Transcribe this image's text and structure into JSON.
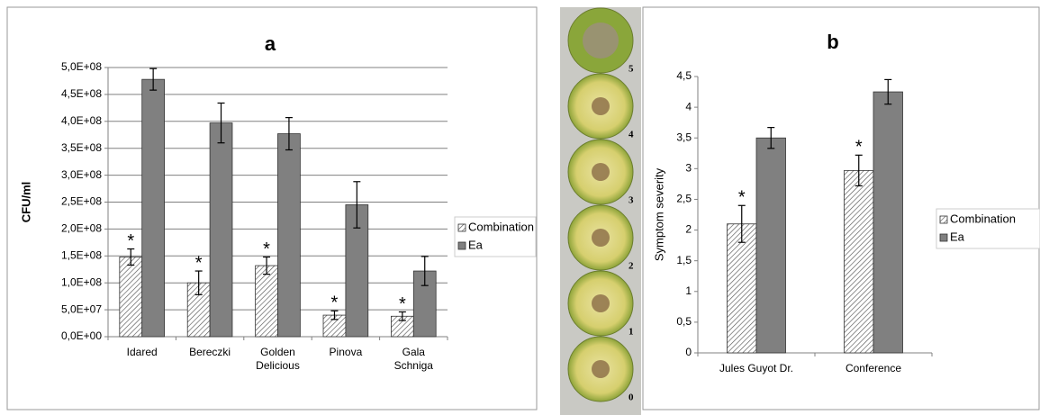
{
  "chart_data": [
    {
      "type": "bar",
      "title": "a",
      "y_label": "CFU/ml",
      "categories": [
        "Idared",
        "Bereczki",
        "Golden Delicious",
        "Pinova",
        "Gala Schniga"
      ],
      "series": [
        {
          "name": "Combination",
          "color": "#ffffff",
          "hatch": true,
          "values": [
            148000000,
            100000000,
            132000000,
            40000000,
            38000000
          ],
          "errors": [
            15000000,
            22000000,
            16000000,
            8000000,
            8000000
          ],
          "significance": [
            "*",
            "*",
            "*",
            "*",
            "*"
          ]
        },
        {
          "name": "Ea",
          "color": "#808080",
          "hatch": false,
          "values": [
            478000000,
            397000000,
            377000000,
            245000000,
            122000000
          ],
          "errors": [
            20000000,
            37000000,
            30000000,
            43000000,
            27000000
          ]
        }
      ],
      "ylim": [
        0,
        500000000
      ],
      "yticks": [
        {
          "value": 0,
          "label": "0,0E+00"
        },
        {
          "value": 50000000,
          "label": "5,0E+07"
        },
        {
          "value": 100000000,
          "label": "1,0E+08"
        },
        {
          "value": 150000000,
          "label": "1,5E+08"
        },
        {
          "value": 200000000,
          "label": "2,0E+08"
        },
        {
          "value": 250000000,
          "label": "2,5E+08"
        },
        {
          "value": 300000000,
          "label": "3,0E+08"
        },
        {
          "value": 350000000,
          "label": "3,5E+08"
        },
        {
          "value": 400000000,
          "label": "4,0E+08"
        },
        {
          "value": 450000000,
          "label": "4,5E+08"
        },
        {
          "value": 500000000,
          "label": "5,0E+08"
        }
      ],
      "grid": true,
      "legend": "right"
    },
    {
      "type": "bar",
      "title": "b",
      "y_label": "Symptom severity",
      "categories": [
        "Jules Guyot Dr.",
        "Conference"
      ],
      "series": [
        {
          "name": "Combination",
          "color": "#ffffff",
          "hatch": true,
          "values": [
            2.1,
            2.97
          ],
          "errors": [
            0.3,
            0.25
          ],
          "significance": [
            "*",
            "*"
          ]
        },
        {
          "name": "Ea",
          "color": "#808080",
          "hatch": false,
          "values": [
            3.5,
            4.25
          ],
          "errors": [
            0.17,
            0.2
          ]
        }
      ],
      "ylim": [
        0,
        4.5
      ],
      "yticks": [
        0,
        {
          "value": 0.5,
          "label": "0,5"
        },
        1,
        {
          "value": 1.5,
          "label": "1,5"
        },
        2,
        {
          "value": 2.5,
          "label": "2,5"
        },
        3,
        {
          "value": 3.5,
          "label": "3,5"
        },
        4,
        {
          "value": 4.5,
          "label": "4,5"
        }
      ],
      "grid": false,
      "legend": "right"
    }
  ],
  "photo_panel": {
    "labels": [
      "5",
      "4",
      "3",
      "2",
      "1",
      "0"
    ]
  }
}
